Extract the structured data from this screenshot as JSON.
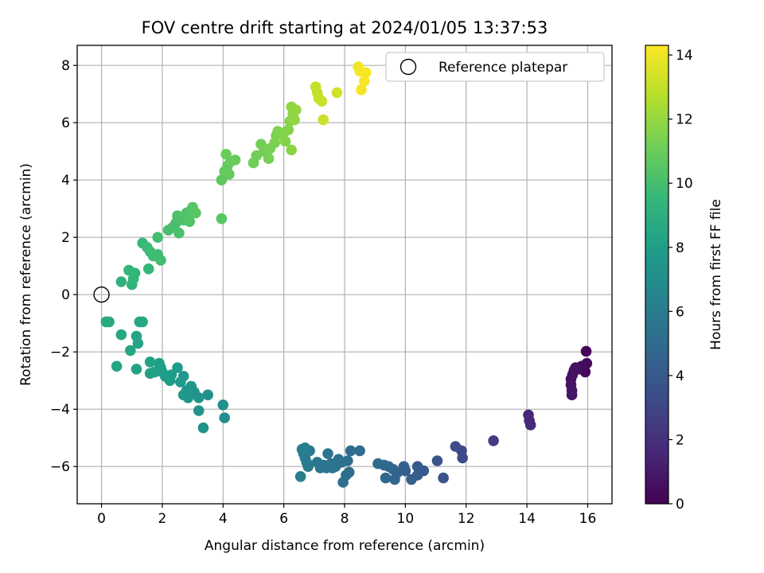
{
  "chart_data": {
    "type": "scatter",
    "title": "FOV centre drift starting at 2024/01/05 13:37:53",
    "xlabel": "Angular distance from reference (arcmin)",
    "ylabel": "Rotation from reference (arcmin)",
    "xlim": [
      -0.8,
      16.8
    ],
    "ylim": [
      -7.3,
      8.7
    ],
    "xticks": [
      0,
      2,
      4,
      6,
      8,
      10,
      12,
      14,
      16
    ],
    "yticks": [
      -6,
      -4,
      -2,
      0,
      2,
      4,
      6,
      8
    ],
    "grid": true,
    "legend": {
      "placement": "top-right",
      "entries": [
        "Reference platepar"
      ]
    },
    "reference_point": {
      "x": 0,
      "y": 0
    },
    "colorbar": {
      "label": "Hours from first FF file",
      "range": [
        0,
        14.3
      ],
      "ticks": [
        0,
        2,
        4,
        6,
        8,
        10,
        12,
        14
      ],
      "colormap": "viridis"
    },
    "series": [
      {
        "marker": "filled-circle",
        "points": [
          [
            15.95,
            -1.98,
            0.2
          ],
          [
            15.97,
            -2.4,
            0.3
          ],
          [
            15.92,
            -2.7,
            0.25
          ],
          [
            15.8,
            -2.5,
            0.4
          ],
          [
            15.7,
            -2.6,
            0.5
          ],
          [
            15.6,
            -2.55,
            0.55
          ],
          [
            15.55,
            -2.65,
            0.6
          ],
          [
            15.5,
            -2.8,
            0.65
          ],
          [
            15.45,
            -2.95,
            0.7
          ],
          [
            15.45,
            -3.15,
            0.75
          ],
          [
            15.48,
            -3.35,
            0.8
          ],
          [
            15.48,
            -3.5,
            0.85
          ],
          [
            14.05,
            -4.2,
            1.5
          ],
          [
            14.08,
            -4.4,
            1.6
          ],
          [
            14.12,
            -4.55,
            1.7
          ],
          [
            12.9,
            -5.1,
            2.6
          ],
          [
            11.85,
            -5.45,
            3.2
          ],
          [
            11.88,
            -5.7,
            3.3
          ],
          [
            11.65,
            -5.3,
            3.4
          ],
          [
            11.25,
            -6.4,
            3.7
          ],
          [
            11.05,
            -5.8,
            3.8
          ],
          [
            10.6,
            -6.15,
            4.0
          ],
          [
            10.4,
            -6.0,
            4.1
          ],
          [
            10.4,
            -6.3,
            4.2
          ],
          [
            10.2,
            -6.45,
            4.3
          ],
          [
            10.0,
            -6.15,
            4.35
          ],
          [
            9.95,
            -6.0,
            4.4
          ],
          [
            9.75,
            -6.2,
            4.5
          ],
          [
            9.65,
            -6.45,
            4.6
          ],
          [
            9.6,
            -6.1,
            4.65
          ],
          [
            9.45,
            -6.0,
            4.7
          ],
          [
            9.35,
            -6.4,
            4.75
          ],
          [
            9.3,
            -5.95,
            4.8
          ],
          [
            9.1,
            -5.9,
            4.85
          ],
          [
            8.5,
            -5.45,
            5.0
          ],
          [
            8.2,
            -5.45,
            5.05
          ],
          [
            8.15,
            -6.2,
            5.1
          ],
          [
            8.1,
            -5.8,
            5.15
          ],
          [
            8.05,
            -6.3,
            5.2
          ],
          [
            7.95,
            -6.55,
            5.25
          ],
          [
            7.9,
            -5.85,
            5.3
          ],
          [
            7.8,
            -5.75,
            5.35
          ],
          [
            7.7,
            -6.0,
            5.4
          ],
          [
            7.6,
            -6.05,
            5.45
          ],
          [
            7.55,
            -5.9,
            5.5
          ],
          [
            7.45,
            -5.55,
            5.55
          ],
          [
            7.4,
            -6.05,
            5.6
          ],
          [
            7.3,
            -5.95,
            5.65
          ],
          [
            7.2,
            -6.05,
            5.7
          ],
          [
            7.1,
            -5.85,
            5.75
          ],
          [
            6.85,
            -5.45,
            5.8
          ],
          [
            6.8,
            -6.0,
            5.85
          ],
          [
            6.75,
            -5.85,
            5.9
          ],
          [
            6.7,
            -5.7,
            5.95
          ],
          [
            6.65,
            -5.55,
            6.0
          ],
          [
            6.7,
            -5.35,
            6.05
          ],
          [
            6.6,
            -5.4,
            6.1
          ],
          [
            6.55,
            -6.35,
            6.15
          ],
          [
            3.5,
            -3.5,
            7.2
          ],
          [
            4.05,
            -4.3,
            7.1
          ],
          [
            4.0,
            -3.85,
            7.15
          ],
          [
            3.35,
            -4.65,
            7.25
          ],
          [
            3.2,
            -4.05,
            7.3
          ],
          [
            3.2,
            -3.6,
            7.35
          ],
          [
            3.05,
            -3.4,
            7.4
          ],
          [
            2.95,
            -3.2,
            7.45
          ],
          [
            2.85,
            -3.6,
            7.5
          ],
          [
            2.8,
            -3.35,
            7.55
          ],
          [
            2.7,
            -3.5,
            7.6
          ],
          [
            2.7,
            -2.85,
            7.65
          ],
          [
            2.6,
            -3.05,
            7.7
          ],
          [
            2.5,
            -2.55,
            7.75
          ],
          [
            2.3,
            -2.8,
            7.8
          ],
          [
            2.25,
            -3.0,
            7.85
          ],
          [
            2.1,
            -2.85,
            7.9
          ],
          [
            2.0,
            -2.7,
            7.95
          ],
          [
            1.95,
            -2.55,
            8.0
          ],
          [
            1.9,
            -2.4,
            8.05
          ],
          [
            1.75,
            -2.7,
            8.1
          ],
          [
            1.6,
            -2.75,
            8.15
          ],
          [
            1.6,
            -2.35,
            8.2
          ],
          [
            1.15,
            -2.6,
            8.25
          ],
          [
            0.5,
            -2.5,
            8.3
          ],
          [
            1.2,
            -1.7,
            8.35
          ],
          [
            1.15,
            -1.45,
            8.4
          ],
          [
            0.95,
            -1.95,
            8.45
          ],
          [
            0.65,
            -1.4,
            8.5
          ],
          [
            1.35,
            -0.95,
            8.55
          ],
          [
            1.25,
            -0.95,
            8.6
          ],
          [
            0.25,
            -0.95,
            8.65
          ],
          [
            0.15,
            -0.95,
            8.7
          ],
          [
            0.65,
            0.45,
            9.2
          ],
          [
            1.0,
            0.35,
            9.3
          ],
          [
            1.05,
            0.55,
            9.35
          ],
          [
            1.1,
            0.75,
            9.4
          ],
          [
            0.9,
            0.85,
            9.45
          ],
          [
            1.55,
            0.9,
            9.5
          ],
          [
            1.35,
            1.8,
            9.6
          ],
          [
            1.5,
            1.65,
            9.7
          ],
          [
            1.6,
            1.5,
            9.75
          ],
          [
            1.7,
            1.35,
            9.8
          ],
          [
            1.85,
            1.4,
            9.85
          ],
          [
            1.95,
            1.2,
            9.9
          ],
          [
            1.85,
            2.0,
            9.95
          ],
          [
            2.2,
            2.25,
            10.0
          ],
          [
            2.35,
            2.35,
            10.05
          ],
          [
            2.45,
            2.5,
            10.1
          ],
          [
            2.55,
            2.15,
            10.15
          ],
          [
            2.5,
            2.75,
            10.2
          ],
          [
            2.7,
            2.6,
            10.25
          ],
          [
            2.8,
            2.85,
            10.3
          ],
          [
            2.9,
            2.55,
            10.35
          ],
          [
            2.95,
            2.95,
            10.4
          ],
          [
            3.0,
            3.05,
            10.45
          ],
          [
            3.1,
            2.85,
            10.5
          ],
          [
            3.95,
            2.65,
            10.55
          ],
          [
            3.95,
            4.0,
            10.7
          ],
          [
            4.05,
            4.3,
            10.75
          ],
          [
            4.15,
            4.5,
            10.8
          ],
          [
            4.2,
            4.2,
            10.85
          ],
          [
            4.25,
            4.65,
            10.9
          ],
          [
            4.4,
            4.7,
            10.95
          ],
          [
            4.1,
            4.9,
            11.0
          ],
          [
            5.0,
            4.6,
            11.1
          ],
          [
            5.1,
            4.85,
            11.15
          ],
          [
            5.25,
            5.25,
            11.2
          ],
          [
            5.35,
            5.0,
            11.25
          ],
          [
            5.5,
            4.75,
            11.3
          ],
          [
            5.55,
            5.1,
            11.35
          ],
          [
            5.7,
            5.3,
            11.4
          ],
          [
            5.75,
            5.55,
            11.45
          ],
          [
            5.8,
            5.7,
            11.5
          ],
          [
            6.0,
            5.65,
            11.55
          ],
          [
            6.05,
            5.35,
            11.6
          ],
          [
            6.15,
            5.75,
            11.65
          ],
          [
            6.2,
            6.05,
            11.7
          ],
          [
            6.25,
            5.05,
            11.75
          ],
          [
            6.3,
            6.3,
            11.8
          ],
          [
            6.25,
            6.55,
            11.85
          ],
          [
            6.35,
            6.1,
            11.9
          ],
          [
            6.4,
            6.45,
            11.95
          ],
          [
            7.05,
            7.25,
            13.0
          ],
          [
            7.1,
            7.05,
            13.05
          ],
          [
            7.15,
            6.85,
            13.1
          ],
          [
            7.25,
            6.75,
            13.15
          ],
          [
            7.3,
            6.1,
            13.2
          ],
          [
            7.75,
            7.05,
            13.3
          ],
          [
            8.45,
            7.95,
            14.0
          ],
          [
            8.5,
            7.8,
            14.05
          ],
          [
            8.55,
            7.15,
            14.1
          ],
          [
            8.65,
            7.45,
            14.15
          ],
          [
            8.7,
            7.75,
            14.2
          ]
        ]
      }
    ]
  }
}
